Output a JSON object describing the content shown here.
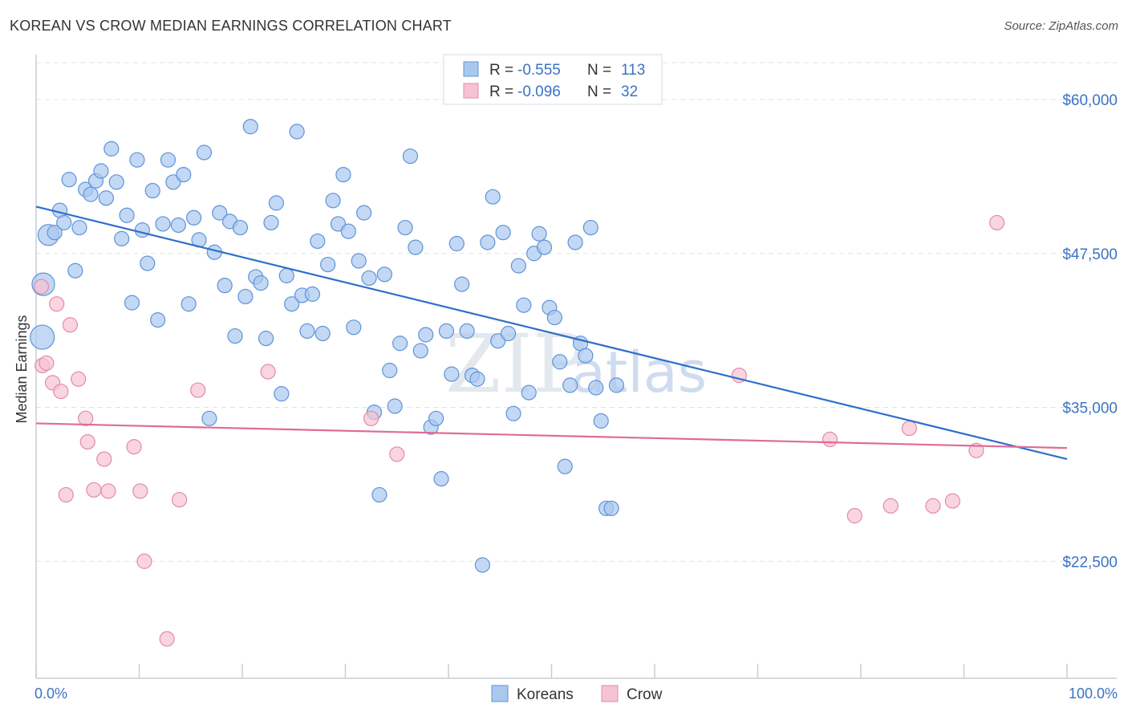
{
  "title": "KOREAN VS CROW MEDIAN EARNINGS CORRELATION CHART",
  "source": "Source: ZipAtlas.com",
  "watermark": {
    "zip": "ZIP",
    "atlas": "atlas"
  },
  "legend": {
    "rows": [
      {
        "r_label": "R =",
        "r_value": "-0.555",
        "n_label": "N =",
        "n_value": "113"
      },
      {
        "r_label": "R =",
        "r_value": "-0.096",
        "n_label": "N =",
        "n_value": "32"
      }
    ]
  },
  "colors": {
    "koreans_fill": "#a9c8ef",
    "koreans_stroke": "#5f93d6",
    "koreans_line": "#2f6fcb",
    "crow_fill": "#f6c3d2",
    "crow_stroke": "#e48aa8",
    "crow_line": "#e06b95",
    "axis_text": "#3b73c4",
    "grid": "#dde3ea"
  },
  "chart_data": {
    "type": "scatter",
    "title": "KOREAN VS CROW MEDIAN EARNINGS CORRELATION CHART",
    "xlabel": "",
    "ylabel": "Median Earnings",
    "xlim": [
      0,
      100
    ],
    "ylim": [
      13000,
      63000
    ],
    "x_tick_labels": [
      "0.0%",
      "100.0%"
    ],
    "y_ticks": [
      22500,
      35000,
      47500,
      60000
    ],
    "y_tick_labels": [
      "$22,500",
      "$35,000",
      "$47,500",
      "$60,000"
    ],
    "legend_position": "top-center",
    "grid": true,
    "series": [
      {
        "name": "Koreans",
        "trend": {
          "x": [
            0,
            100
          ],
          "y": [
            51300,
            30800
          ]
        },
        "points": [
          [
            0.7,
            45000,
            24
          ],
          [
            0.6,
            40700,
            26
          ],
          [
            1.2,
            49000,
            22
          ],
          [
            1.8,
            49200,
            14
          ],
          [
            2.3,
            51000,
            14
          ],
          [
            2.7,
            50000,
            14
          ],
          [
            3.2,
            53500,
            14
          ],
          [
            3.8,
            46100,
            14
          ],
          [
            4.2,
            49600,
            14
          ],
          [
            4.8,
            52700,
            14
          ],
          [
            5.3,
            52300,
            14
          ],
          [
            5.8,
            53400,
            14
          ],
          [
            6.3,
            54200,
            14
          ],
          [
            6.8,
            52000,
            14
          ],
          [
            7.3,
            56000,
            14
          ],
          [
            7.8,
            53300,
            14
          ],
          [
            8.3,
            48700,
            14
          ],
          [
            8.8,
            50600,
            14
          ],
          [
            9.3,
            43500,
            14
          ],
          [
            9.8,
            55100,
            14
          ],
          [
            10.3,
            49400,
            14
          ],
          [
            10.8,
            46700,
            14
          ],
          [
            11.3,
            52600,
            14
          ],
          [
            11.8,
            42100,
            14
          ],
          [
            12.3,
            49900,
            14
          ],
          [
            12.8,
            55100,
            14
          ],
          [
            13.3,
            53300,
            14
          ],
          [
            13.8,
            49800,
            14
          ],
          [
            14.3,
            53900,
            14
          ],
          [
            14.8,
            43400,
            14
          ],
          [
            15.3,
            50400,
            14
          ],
          [
            15.8,
            48600,
            14
          ],
          [
            16.3,
            55700,
            14
          ],
          [
            16.8,
            34100,
            14
          ],
          [
            17.3,
            47600,
            14
          ],
          [
            17.8,
            50800,
            14
          ],
          [
            18.3,
            44900,
            14
          ],
          [
            18.8,
            50100,
            14
          ],
          [
            19.3,
            40800,
            14
          ],
          [
            19.8,
            49600,
            14
          ],
          [
            20.3,
            44000,
            14
          ],
          [
            20.8,
            57800,
            14
          ],
          [
            21.3,
            45600,
            14
          ],
          [
            21.8,
            45100,
            14
          ],
          [
            22.3,
            40600,
            14
          ],
          [
            22.8,
            50000,
            14
          ],
          [
            23.3,
            51600,
            14
          ],
          [
            23.8,
            36100,
            14
          ],
          [
            24.3,
            45700,
            14
          ],
          [
            24.8,
            43400,
            14
          ],
          [
            25.3,
            57400,
            14
          ],
          [
            25.8,
            44100,
            14
          ],
          [
            26.3,
            41200,
            14
          ],
          [
            26.8,
            44200,
            14
          ],
          [
            27.3,
            48500,
            14
          ],
          [
            27.8,
            41000,
            14
          ],
          [
            28.3,
            46600,
            14
          ],
          [
            28.8,
            51800,
            14
          ],
          [
            29.3,
            49900,
            14
          ],
          [
            29.8,
            53900,
            14
          ],
          [
            30.3,
            49300,
            14
          ],
          [
            30.8,
            41500,
            14
          ],
          [
            31.3,
            46900,
            14
          ],
          [
            31.8,
            50800,
            14
          ],
          [
            32.3,
            45500,
            14
          ],
          [
            32.8,
            34600,
            14
          ],
          [
            33.3,
            27900,
            14
          ],
          [
            33.8,
            45800,
            14
          ],
          [
            34.3,
            38000,
            14
          ],
          [
            34.8,
            35100,
            14
          ],
          [
            35.3,
            40200,
            14
          ],
          [
            35.8,
            49600,
            14
          ],
          [
            36.3,
            55400,
            14
          ],
          [
            36.8,
            48000,
            14
          ],
          [
            37.3,
            39600,
            14
          ],
          [
            37.8,
            40900,
            14
          ],
          [
            38.3,
            33400,
            14
          ],
          [
            38.8,
            34100,
            14
          ],
          [
            39.3,
            29200,
            14
          ],
          [
            39.8,
            41200,
            14
          ],
          [
            40.3,
            37700,
            14
          ],
          [
            40.8,
            48300,
            14
          ],
          [
            41.3,
            45000,
            14
          ],
          [
            41.8,
            41200,
            14
          ],
          [
            42.3,
            37600,
            14
          ],
          [
            42.8,
            37300,
            14
          ],
          [
            43.3,
            22200,
            14
          ],
          [
            43.8,
            48400,
            14
          ],
          [
            44.3,
            52100,
            14
          ],
          [
            44.8,
            40400,
            14
          ],
          [
            45.3,
            49200,
            14
          ],
          [
            45.8,
            41000,
            14
          ],
          [
            46.3,
            34500,
            14
          ],
          [
            46.8,
            46500,
            14
          ],
          [
            47.3,
            43300,
            14
          ],
          [
            47.8,
            36200,
            14
          ],
          [
            48.3,
            47500,
            14
          ],
          [
            48.8,
            49100,
            14
          ],
          [
            49.3,
            48000,
            14
          ],
          [
            49.8,
            43100,
            14
          ],
          [
            50.3,
            42300,
            14
          ],
          [
            50.8,
            38700,
            14
          ],
          [
            51.3,
            30200,
            14
          ],
          [
            51.8,
            36800,
            14
          ],
          [
            52.3,
            48400,
            14
          ],
          [
            52.8,
            40200,
            14
          ],
          [
            53.3,
            39200,
            14
          ],
          [
            53.8,
            49600,
            14
          ],
          [
            54.3,
            36600,
            14
          ],
          [
            54.8,
            33900,
            14
          ],
          [
            55.3,
            26800,
            14
          ],
          [
            55.8,
            26800,
            14
          ],
          [
            56.3,
            36800,
            14
          ]
        ]
      },
      {
        "name": "Crow",
        "trend": {
          "x": [
            0,
            100
          ],
          "y": [
            33700,
            31700
          ]
        },
        "points": [
          [
            0.5,
            44800,
            14
          ],
          [
            0.6,
            38400,
            14
          ],
          [
            1.0,
            38600,
            14
          ],
          [
            1.6,
            37000,
            14
          ],
          [
            2.0,
            43400,
            14
          ],
          [
            2.4,
            36300,
            14
          ],
          [
            2.9,
            27900,
            14
          ],
          [
            3.3,
            41700,
            14
          ],
          [
            4.1,
            37300,
            14
          ],
          [
            4.8,
            34100,
            14
          ],
          [
            5.0,
            32200,
            14
          ],
          [
            5.6,
            28300,
            14
          ],
          [
            6.6,
            30800,
            14
          ],
          [
            7.0,
            28200,
            14
          ],
          [
            9.5,
            31800,
            14
          ],
          [
            10.1,
            28200,
            14
          ],
          [
            10.5,
            22500,
            14
          ],
          [
            12.7,
            16200,
            14
          ],
          [
            13.9,
            27500,
            14
          ],
          [
            15.7,
            36400,
            14
          ],
          [
            22.5,
            37900,
            14
          ],
          [
            32.5,
            34100,
            14
          ],
          [
            35.0,
            31200,
            14
          ],
          [
            68.2,
            37600,
            14
          ],
          [
            77.0,
            32400,
            14
          ],
          [
            79.4,
            26200,
            14
          ],
          [
            82.9,
            27000,
            14
          ],
          [
            84.7,
            33300,
            14
          ],
          [
            87.0,
            27000,
            14
          ],
          [
            88.9,
            27400,
            14
          ],
          [
            91.2,
            31500,
            14
          ],
          [
            93.2,
            50000,
            14
          ]
        ]
      }
    ]
  },
  "bottom_legend": [
    {
      "label": "Koreans"
    },
    {
      "label": "Crow"
    }
  ]
}
